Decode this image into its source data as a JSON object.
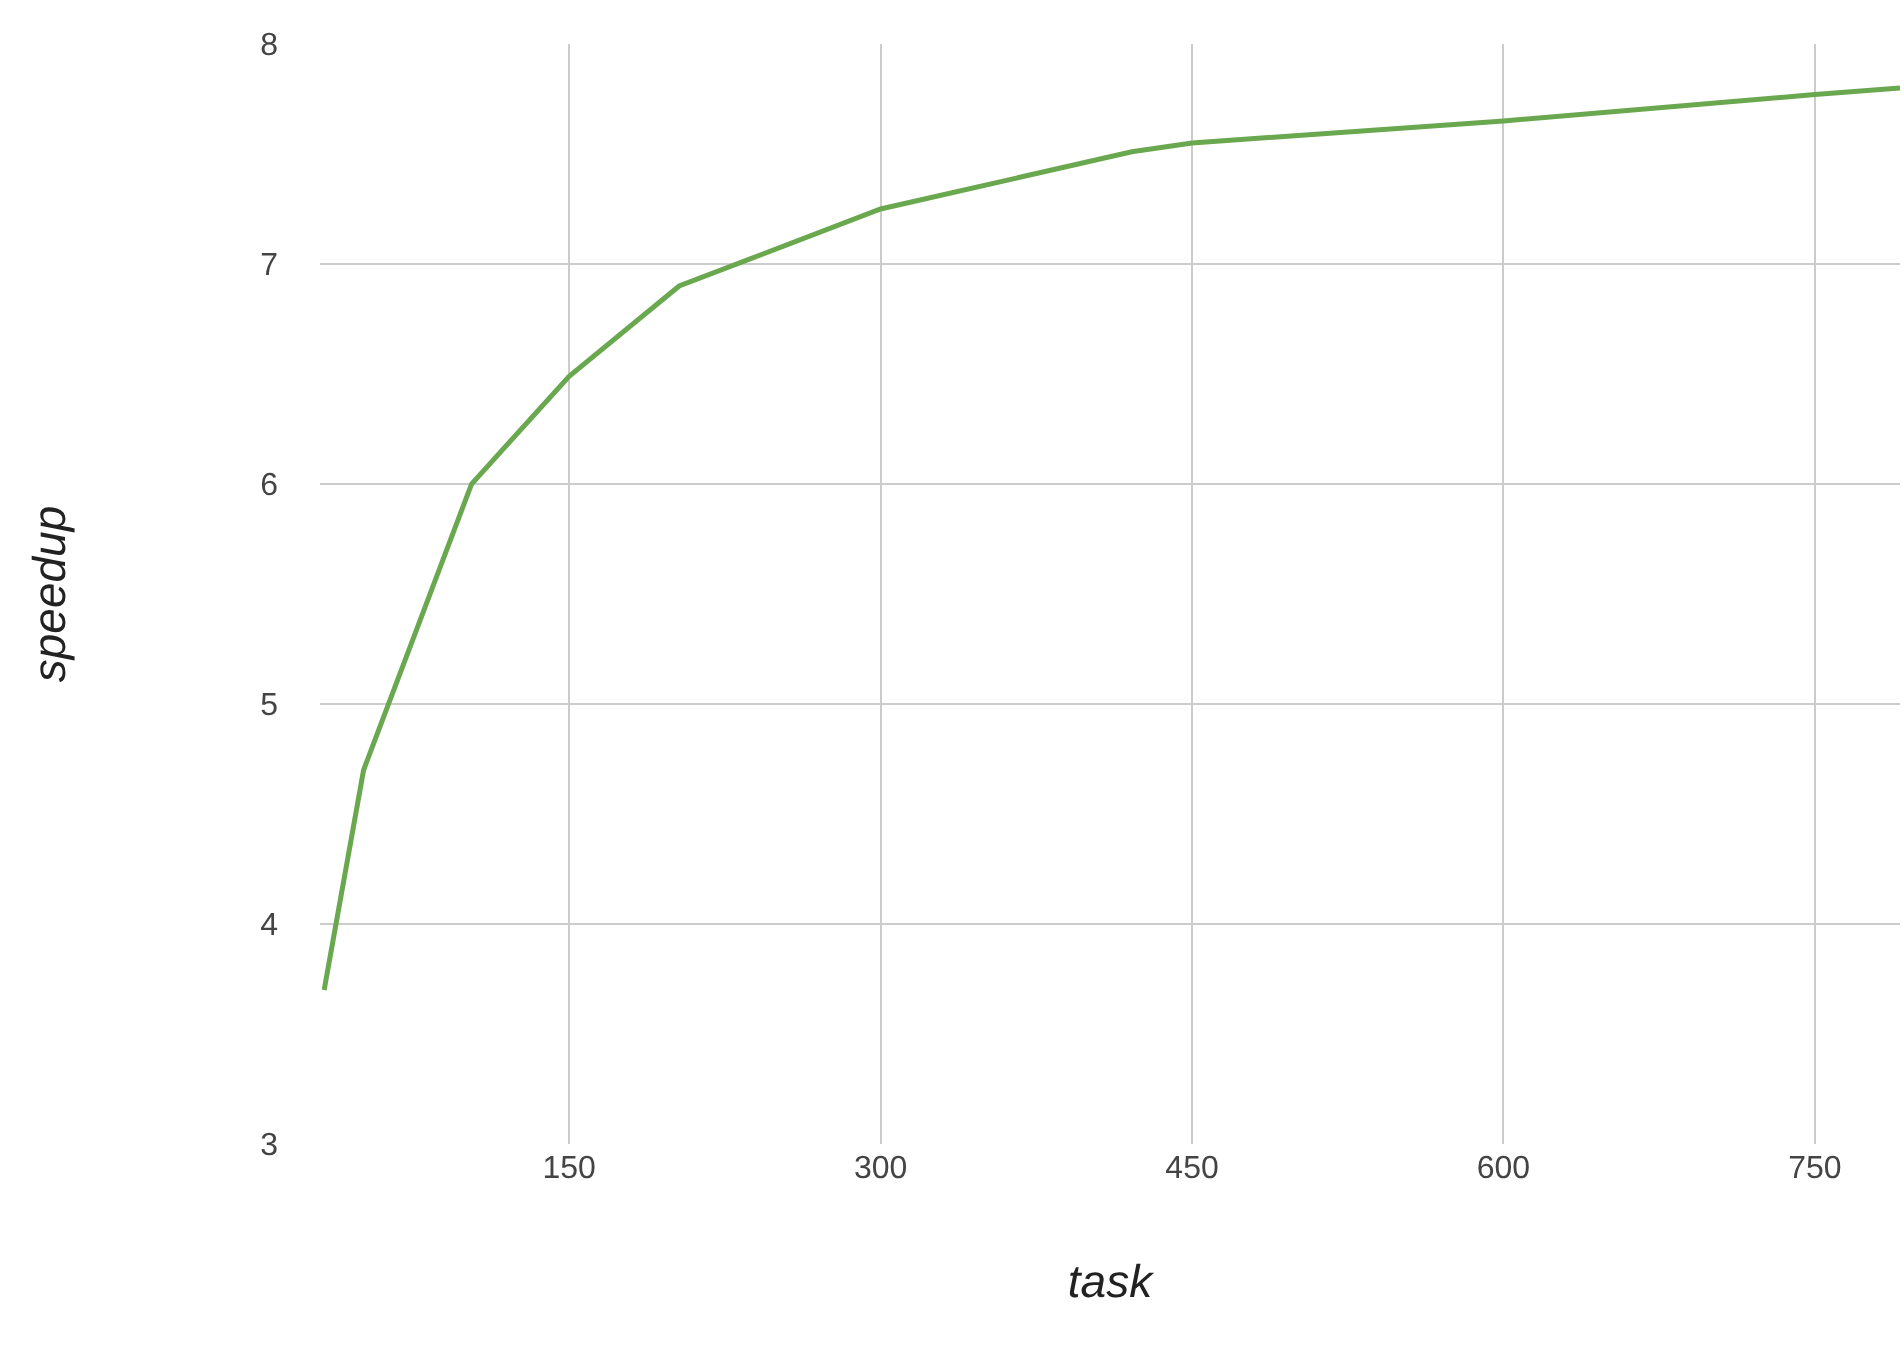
{
  "chart_data": {
    "type": "line",
    "xlabel": "task",
    "ylabel": "speedup",
    "x": [
      32,
      51,
      103,
      150,
      203,
      300,
      421,
      450,
      600,
      750,
      791
    ],
    "series": [
      {
        "color": "#6aa84f",
        "values": [
          3.7,
          4.7,
          6.0,
          6.49,
          6.9,
          7.25,
          7.51,
          7.55,
          7.65,
          7.77,
          7.8
        ]
      }
    ],
    "xlim": [
      30,
      791
    ],
    "xticks": [
      150,
      300,
      450,
      600,
      750
    ],
    "ylim": [
      3,
      8
    ],
    "yticks": [
      3,
      4,
      5,
      6,
      7,
      8
    ],
    "grid": true,
    "legend": false,
    "marker": "none",
    "line_style": "solid"
  }
}
